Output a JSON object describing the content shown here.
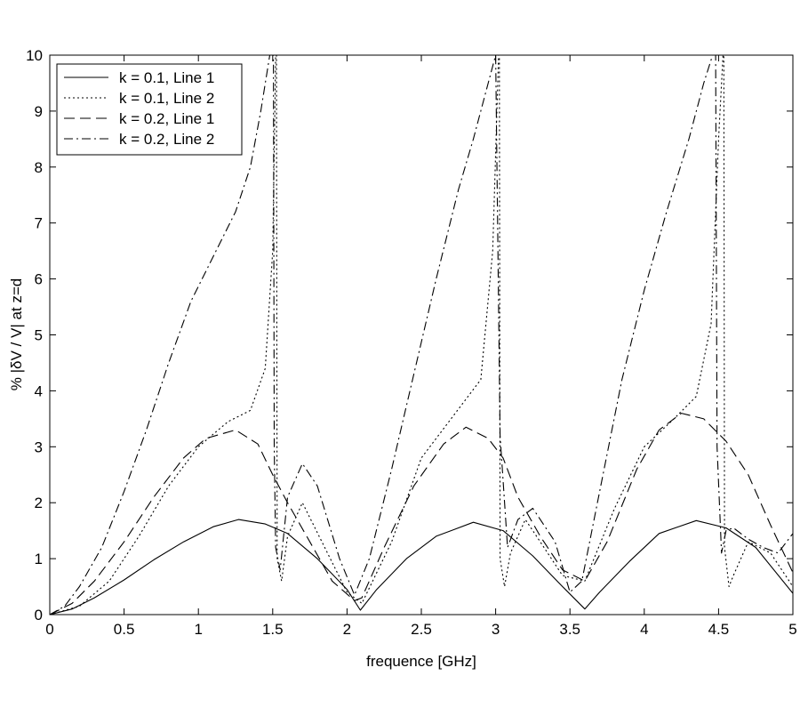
{
  "chart_data": {
    "type": "line",
    "title": "",
    "xlabel": "frequence [GHz]",
    "ylabel": "% |δV / V| at z=d",
    "xlim": [
      0,
      5
    ],
    "ylim": [
      0,
      10
    ],
    "x_ticks": [
      0,
      0.5,
      1,
      1.5,
      2,
      2.5,
      3,
      3.5,
      4,
      4.5,
      5
    ],
    "x_tick_labels": [
      "0",
      "0.5",
      "1",
      "1.5",
      "2",
      "2.5",
      "3",
      "3.5",
      "4",
      "4.5",
      "5"
    ],
    "y_ticks": [
      0,
      1,
      2,
      3,
      4,
      5,
      6,
      7,
      8,
      9,
      10
    ],
    "y_tick_labels": [
      "0",
      "1",
      "2",
      "3",
      "4",
      "5",
      "6",
      "7",
      "8",
      "9",
      "10"
    ],
    "grid": false,
    "legend_position": "top-left",
    "series": [
      {
        "name": "k = 0.1, Line 1",
        "line_style": "solid",
        "color": "#000000",
        "x": [
          0,
          0.15,
          0.3,
          0.5,
          0.7,
          0.9,
          1.1,
          1.27,
          1.45,
          1.6,
          1.8,
          2.0,
          2.09,
          2.2,
          2.4,
          2.6,
          2.85,
          3.05,
          3.25,
          3.45,
          3.6,
          3.7,
          3.9,
          4.1,
          4.35,
          4.55,
          4.75,
          5.0
        ],
        "y": [
          0,
          0.1,
          0.3,
          0.62,
          0.98,
          1.3,
          1.57,
          1.7,
          1.62,
          1.45,
          1.0,
          0.45,
          0.08,
          0.45,
          1.0,
          1.4,
          1.65,
          1.5,
          1.05,
          0.5,
          0.1,
          0.4,
          0.95,
          1.45,
          1.68,
          1.55,
          1.2,
          0.38
        ]
      },
      {
        "name": "k = 0.1, Line 2",
        "line_style": "dotted",
        "color": "#000000",
        "x": [
          0,
          0.2,
          0.4,
          0.6,
          0.8,
          1.0,
          1.2,
          1.35,
          1.45,
          1.5,
          1.52,
          1.525,
          1.53,
          1.56,
          1.6,
          1.7,
          1.85,
          2.0,
          2.1,
          2.3,
          2.5,
          2.7,
          2.9,
          2.98,
          3.02,
          3.025,
          3.03,
          3.06,
          3.1,
          3.2,
          3.3,
          3.45,
          3.6,
          3.8,
          4.0,
          4.2,
          4.35,
          4.45,
          4.5,
          4.53,
          4.535,
          4.54,
          4.57,
          4.6,
          4.7,
          4.85,
          5.0
        ],
        "y": [
          0,
          0.15,
          0.6,
          1.4,
          2.3,
          3.0,
          3.45,
          3.65,
          4.4,
          6.5,
          10,
          10,
          1.0,
          0.6,
          1.4,
          2.0,
          1.2,
          0.4,
          0.2,
          1.3,
          2.8,
          3.5,
          4.2,
          6.5,
          10,
          10,
          1.0,
          0.5,
          1.1,
          1.7,
          1.3,
          0.7,
          0.6,
          1.9,
          3.0,
          3.5,
          3.9,
          5.2,
          8.5,
          10,
          10,
          1.2,
          0.5,
          0.7,
          1.3,
          1.1,
          0.5
        ]
      },
      {
        "name": "k = 0.2, Line 1",
        "line_style": "dashed",
        "color": "#000000",
        "x": [
          0,
          0.15,
          0.3,
          0.5,
          0.7,
          0.9,
          1.05,
          1.25,
          1.4,
          1.5,
          1.6,
          1.75,
          1.9,
          2.05,
          2.1,
          2.25,
          2.45,
          2.65,
          2.8,
          2.95,
          3.05,
          3.15,
          3.3,
          3.45,
          3.6,
          3.75,
          3.95,
          4.1,
          4.25,
          4.4,
          4.55,
          4.7,
          4.85,
          5.0
        ],
        "y": [
          0,
          0.2,
          0.6,
          1.3,
          2.1,
          2.8,
          3.15,
          3.3,
          3.05,
          2.5,
          2.0,
          1.3,
          0.6,
          0.25,
          0.3,
          1.2,
          2.3,
          3.05,
          3.35,
          3.15,
          2.8,
          2.1,
          1.4,
          0.8,
          0.6,
          1.3,
          2.6,
          3.3,
          3.6,
          3.5,
          3.1,
          2.5,
          1.6,
          0.75
        ]
      },
      {
        "name": "k = 0.2, Line 2",
        "line_style": "dash-dot",
        "color": "#000000",
        "x": [
          0,
          0.1,
          0.2,
          0.35,
          0.5,
          0.65,
          0.8,
          0.95,
          1.1,
          1.25,
          1.35,
          1.42,
          1.48,
          1.505,
          1.51,
          1.52,
          1.55,
          1.6,
          1.7,
          1.8,
          1.95,
          2.05,
          2.15,
          2.3,
          2.45,
          2.6,
          2.75,
          2.85,
          2.95,
          2.99,
          3.0,
          3.03,
          3.08,
          3.15,
          3.25,
          3.4,
          3.5,
          3.58,
          3.7,
          3.85,
          4.0,
          4.15,
          4.3,
          4.4,
          4.46,
          4.48,
          4.49,
          4.52,
          4.55,
          4.6,
          4.7,
          4.8,
          4.9,
          5.0
        ],
        "y": [
          0,
          0.15,
          0.5,
          1.2,
          2.2,
          3.3,
          4.5,
          5.6,
          6.4,
          7.2,
          8.0,
          9.0,
          10,
          10,
          3.0,
          1.2,
          0.8,
          2.1,
          2.7,
          2.3,
          1.0,
          0.35,
          1.0,
          2.6,
          4.3,
          6.0,
          7.6,
          8.5,
          9.5,
          9.9,
          10,
          3.2,
          1.2,
          1.7,
          1.9,
          1.3,
          0.4,
          0.6,
          2.2,
          4.2,
          5.8,
          7.2,
          8.5,
          9.5,
          10,
          10,
          3.0,
          1.1,
          1.5,
          1.55,
          1.35,
          1.2,
          1.1,
          1.45
        ]
      }
    ]
  }
}
